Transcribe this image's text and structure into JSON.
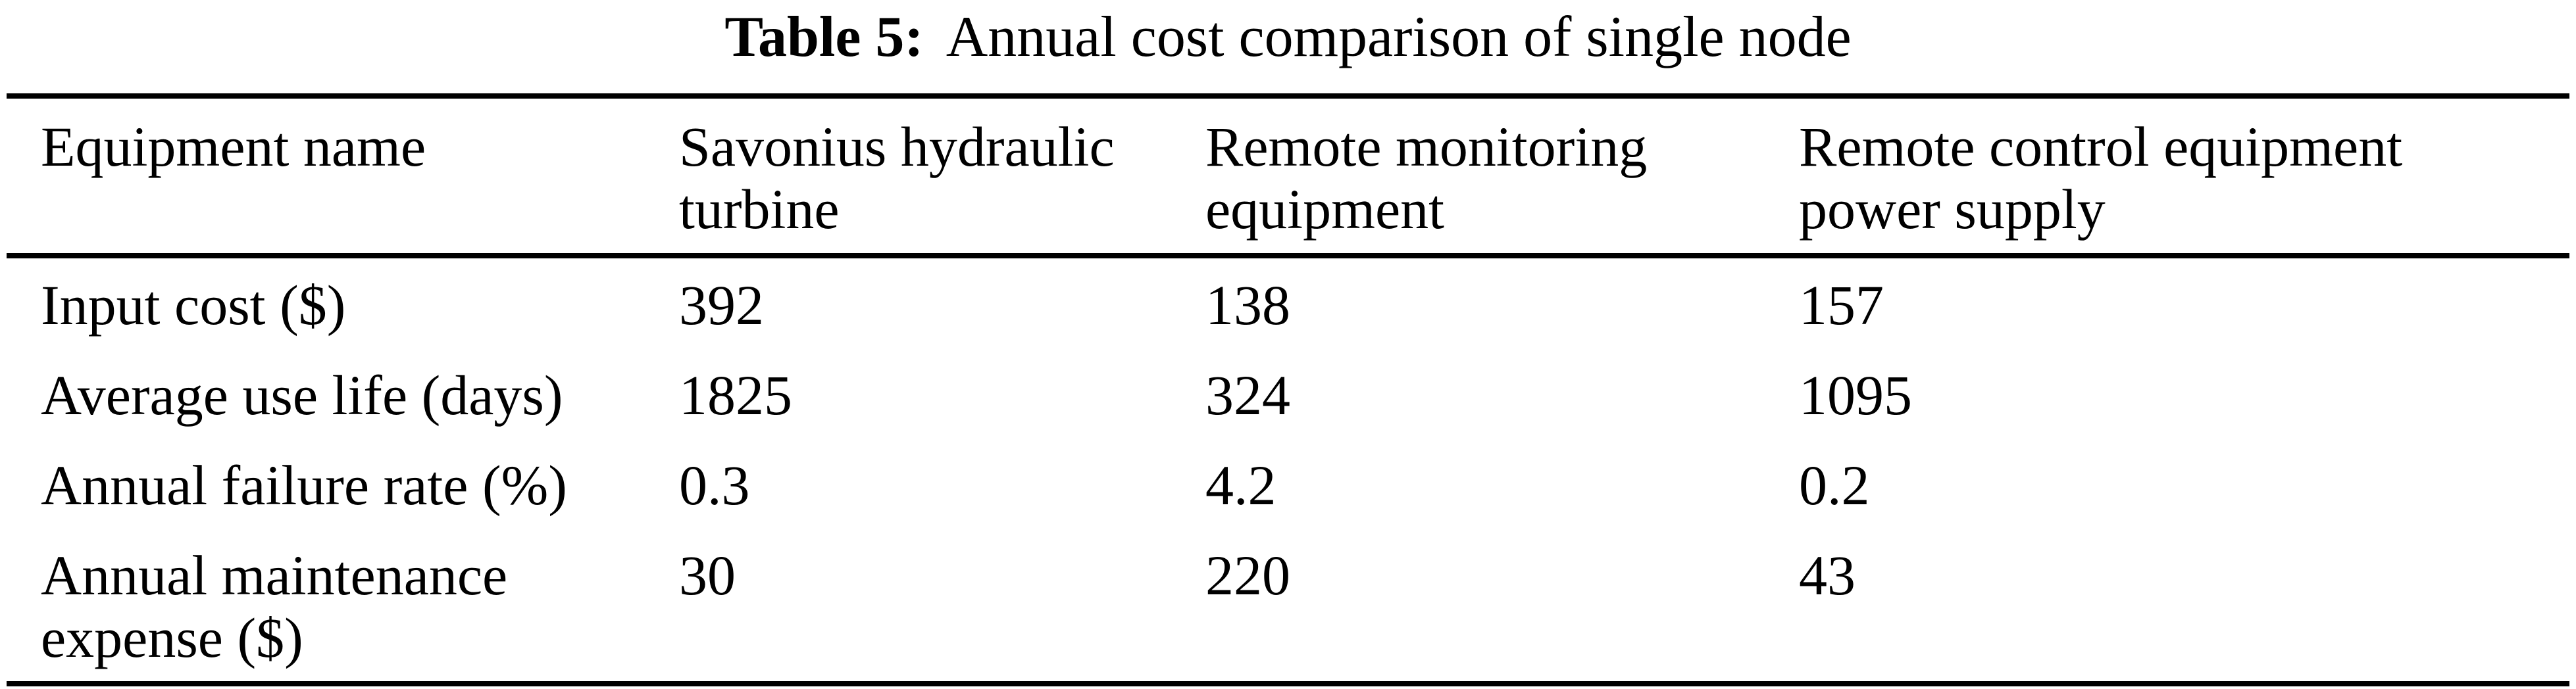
{
  "caption": {
    "label": "Table 5:",
    "text": "Annual cost comparison of single node"
  },
  "table": {
    "headers": [
      "Equipment name",
      "Savonius hydraulic turbine",
      "Remote monitoring equipment",
      "Remote control equipment power supply"
    ],
    "rows": [
      {
        "name": "Input cost ($)",
        "values": [
          "392",
          "138",
          "157"
        ]
      },
      {
        "name": "Average use life (days)",
        "values": [
          "1825",
          "324",
          "1095"
        ]
      },
      {
        "name": "Annual failure rate (%)",
        "values": [
          "0.3",
          "4.2",
          "0.2"
        ]
      },
      {
        "name": "Annual maintenance expense ($)",
        "values": [
          "30",
          "220",
          "43"
        ]
      }
    ]
  },
  "chart_data": {
    "type": "table",
    "title": "Table 5: Annual cost comparison of single node",
    "columns": [
      "Equipment name",
      "Savonius hydraulic turbine",
      "Remote monitoring equipment",
      "Remote control equipment power supply"
    ],
    "rows": [
      [
        "Input cost ($)",
        392,
        138,
        157
      ],
      [
        "Average use life (days)",
        1825,
        324,
        1095
      ],
      [
        "Annual failure rate (%)",
        0.3,
        4.2,
        0.2
      ],
      [
        "Annual maintenance expense ($)",
        30,
        220,
        43
      ]
    ]
  },
  "colors": {
    "text": "#000000",
    "background": "#ffffff",
    "rule": "#000000"
  }
}
